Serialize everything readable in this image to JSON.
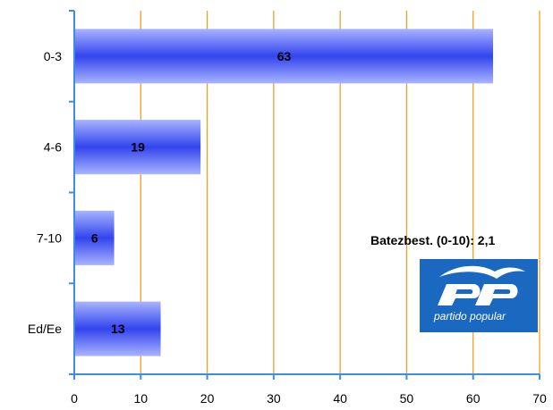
{
  "chart_data": {
    "type": "bar",
    "orientation": "horizontal",
    "categories": [
      "0-3",
      "4-6",
      "7-10",
      "Ed/Ee"
    ],
    "values": [
      63,
      19,
      6,
      13
    ],
    "title": "",
    "xlabel": "",
    "ylabel": "",
    "xlim": [
      0,
      70
    ],
    "xticks": [
      0,
      10,
      20,
      30,
      40,
      50,
      60,
      70
    ],
    "grid": "vertical",
    "annotation": "Batezbest.  (0-10): 2,1",
    "colors": {
      "bar_light": "#a8b4ff",
      "bar_dark": "#3344ee",
      "grid": "#f0a020",
      "axis": "#3b8ee8",
      "logo_bg": "#1a68c0"
    }
  },
  "logo": {
    "name": "pp-logo",
    "subtitle": "partido popular"
  }
}
